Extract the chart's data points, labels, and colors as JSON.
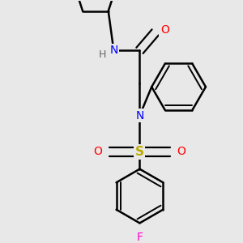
{
  "background_color": "#e8e8e8",
  "line_color": "#000000",
  "bond_width": 1.8,
  "N_color": "#0000ff",
  "O_color": "#ff0000",
  "S_color": "#bbaa00",
  "F_color": "#ff00cc",
  "H_color": "#666666",
  "figsize": [
    3.0,
    3.0
  ],
  "dpi": 100,
  "xlim": [
    -1.8,
    1.8
  ],
  "ylim": [
    -2.2,
    2.2
  ]
}
